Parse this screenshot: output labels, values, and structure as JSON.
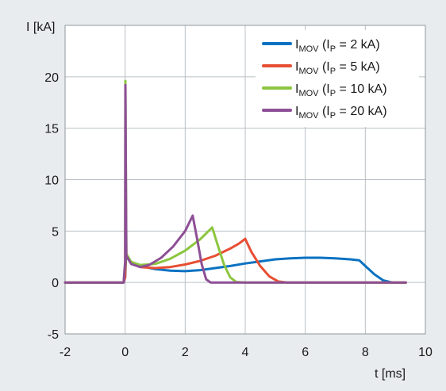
{
  "chart_data": {
    "type": "line",
    "ylabel": "I [kA]",
    "xlabel": "t [ms]",
    "xlim": [
      -2,
      10
    ],
    "ylim": [
      -5,
      25
    ],
    "x_ticks": [
      -2,
      0,
      2,
      4,
      6,
      8,
      10
    ],
    "y_ticks": [
      -5,
      0,
      5,
      10,
      15,
      20
    ],
    "grid": true,
    "legend_position": "top-right",
    "series": [
      {
        "name_parts": {
          "main": "I",
          "sub": "MOV",
          "mid": " (I",
          "sub2": "P",
          "rest": " = 2 kA)"
        },
        "color": "#0a72c2",
        "points": [
          [
            -2,
            0
          ],
          [
            -0.05,
            0
          ],
          [
            0,
            0.5
          ],
          [
            0.03,
            2.5
          ],
          [
            0.2,
            2.0
          ],
          [
            0.5,
            1.6
          ],
          [
            1,
            1.3
          ],
          [
            1.5,
            1.15
          ],
          [
            2,
            1.1
          ],
          [
            2.5,
            1.2
          ],
          [
            3,
            1.4
          ],
          [
            3.5,
            1.6
          ],
          [
            4,
            1.85
          ],
          [
            4.5,
            2.05
          ],
          [
            5,
            2.25
          ],
          [
            5.5,
            2.35
          ],
          [
            6,
            2.4
          ],
          [
            6.5,
            2.4
          ],
          [
            7,
            2.35
          ],
          [
            7.5,
            2.25
          ],
          [
            7.8,
            2.15
          ],
          [
            8,
            1.6
          ],
          [
            8.3,
            0.8
          ],
          [
            8.6,
            0.2
          ],
          [
            8.9,
            0
          ],
          [
            9.35,
            0
          ]
        ]
      },
      {
        "name_parts": {
          "main": "I",
          "sub": "MOV",
          "mid": " (I",
          "sub2": "P",
          "rest": " = 5 kA)"
        },
        "color": "#e84e33",
        "points": [
          [
            -2,
            0
          ],
          [
            -0.05,
            0
          ],
          [
            0,
            0.5
          ],
          [
            0.02,
            2.8
          ],
          [
            0.2,
            2.0
          ],
          [
            0.5,
            1.5
          ],
          [
            1,
            1.4
          ],
          [
            1.5,
            1.5
          ],
          [
            2,
            1.75
          ],
          [
            2.5,
            2.1
          ],
          [
            3,
            2.6
          ],
          [
            3.5,
            3.3
          ],
          [
            3.8,
            3.8
          ],
          [
            4,
            4.25
          ],
          [
            4.2,
            3.0
          ],
          [
            4.5,
            1.6
          ],
          [
            4.8,
            0.6
          ],
          [
            5.1,
            0.1
          ],
          [
            5.4,
            0
          ],
          [
            9.35,
            0
          ]
        ]
      },
      {
        "name_parts": {
          "main": "I",
          "sub": "MOV",
          "mid": " (I",
          "sub2": "P",
          "rest": " = 10 kA)"
        },
        "color": "#8cc63f",
        "points": [
          [
            -2,
            0
          ],
          [
            -0.05,
            0
          ],
          [
            0,
            2.0
          ],
          [
            0.01,
            19.6
          ],
          [
            0.04,
            2.8
          ],
          [
            0.2,
            2.0
          ],
          [
            0.5,
            1.7
          ],
          [
            1,
            1.8
          ],
          [
            1.5,
            2.3
          ],
          [
            2,
            3.1
          ],
          [
            2.5,
            4.2
          ],
          [
            2.9,
            5.35
          ],
          [
            3.1,
            3.5
          ],
          [
            3.3,
            1.7
          ],
          [
            3.5,
            0.5
          ],
          [
            3.7,
            0.05
          ],
          [
            4,
            0
          ],
          [
            9.35,
            0
          ]
        ]
      },
      {
        "name_parts": {
          "main": "I",
          "sub": "MOV",
          "mid": " (I",
          "sub2": "P",
          "rest": " = 20 kA)"
        },
        "color": "#8e4f96",
        "points": [
          [
            -2,
            0
          ],
          [
            -0.05,
            0
          ],
          [
            0,
            2.0
          ],
          [
            0.01,
            19.2
          ],
          [
            0.04,
            2.6
          ],
          [
            0.2,
            1.8
          ],
          [
            0.5,
            1.5
          ],
          [
            0.8,
            1.7
          ],
          [
            1.2,
            2.4
          ],
          [
            1.6,
            3.5
          ],
          [
            2,
            5.0
          ],
          [
            2.25,
            6.5
          ],
          [
            2.4,
            4.2
          ],
          [
            2.55,
            1.8
          ],
          [
            2.7,
            0.3
          ],
          [
            2.85,
            0
          ],
          [
            9.35,
            0
          ]
        ]
      }
    ]
  }
}
